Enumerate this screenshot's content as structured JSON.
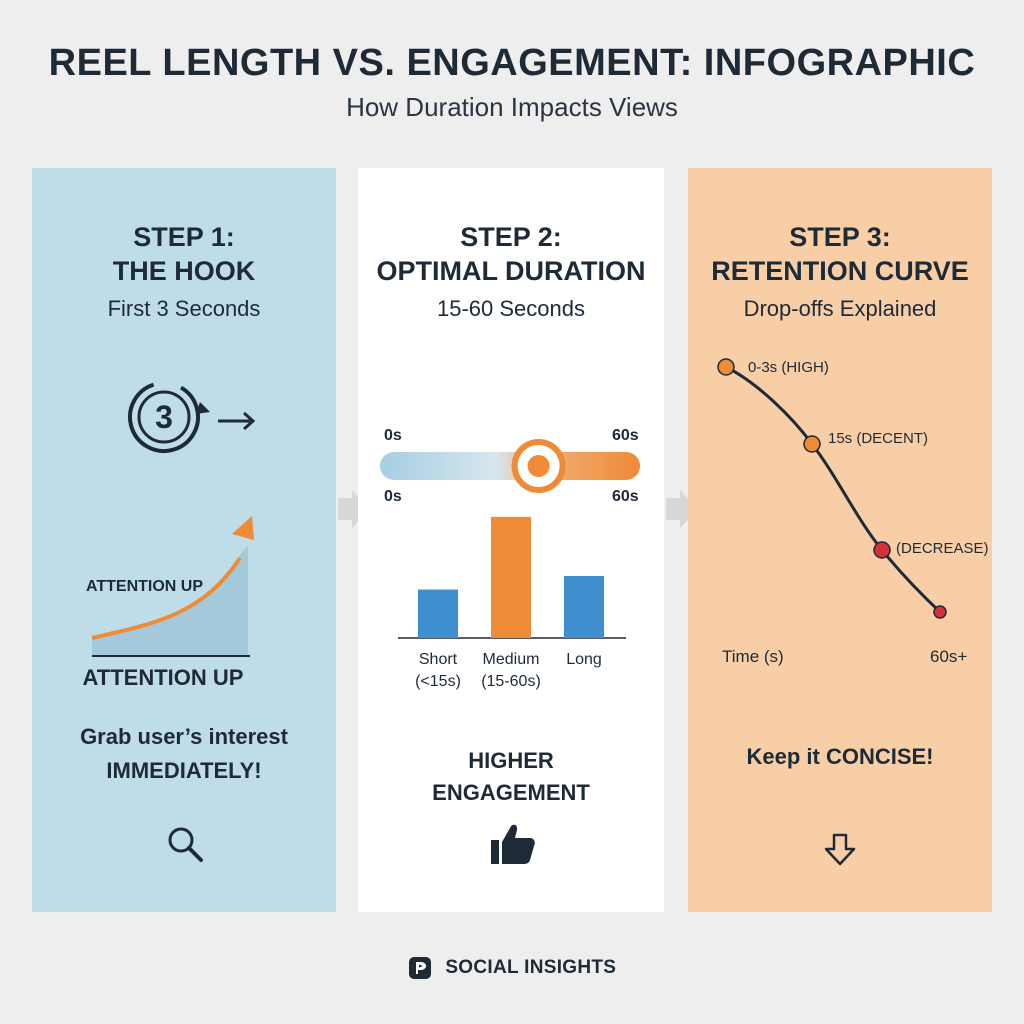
{
  "header": {
    "title": "REEL LENGTH VS. ENGAGEMENT: INFOGRAPHIC",
    "subtitle": "How Duration Impacts Views"
  },
  "step1": {
    "step": "STEP 1:",
    "name": "THE HOOK",
    "sub": "First 3 Seconds",
    "timer_number": "3",
    "chart_label": "ATTENTION UP",
    "axis_label": "ATTENTION UP",
    "text_line1": "Grab user’s interest",
    "text_line2": "IMMEDIATELY!",
    "icon": "magnifier-icon"
  },
  "step2": {
    "step": "STEP 2:",
    "name": "OPTIMAL DURATION",
    "sub": "15-60 Seconds",
    "slider_start_top": "0s",
    "slider_end_top": "60s",
    "slider_start_bottom": "0s",
    "slider_end_bottom": "60s",
    "slider_position": 0.61,
    "text_line1": "HIGHER",
    "text_line2": "ENGAGEMENT",
    "icon": "thumbs-up-icon"
  },
  "step3": {
    "step": "STEP 3:",
    "name": "RETENTION CURVE",
    "sub": "Drop-offs Explained",
    "text": "Keep it CONCISE!",
    "icon": "down-arrow-icon"
  },
  "chart_data": [
    {
      "type": "bar",
      "categories": [
        "Short\n(<15s)",
        "Medium\n(15-60s)",
        "Long"
      ],
      "category_lines": [
        [
          "Short",
          "(<15s)"
        ],
        [
          "Medium",
          "(15-60s)"
        ],
        [
          "Long"
        ]
      ],
      "values": [
        50,
        125,
        64
      ],
      "colors": [
        "#3f8ed0",
        "#ef8a36",
        "#3f8ed0"
      ],
      "ylim": [
        0,
        130
      ]
    },
    {
      "type": "line",
      "xlabel": "Time (s)",
      "x_end_label": "60s+",
      "points": [
        {
          "label": "0-3s (HIGH)",
          "color": "#ef8a36"
        },
        {
          "label": "15s (DECENT)",
          "color": "#ef8a36"
        },
        {
          "label": "(DECREASE)",
          "color": "#d6303a"
        },
        {
          "label": "",
          "color": "#d6303a"
        }
      ]
    }
  ],
  "footer": {
    "brand": "SOCIAL INSIGHTS"
  },
  "colors": {
    "blue_panel": "#bfdde9",
    "orange_panel": "#f8cea6",
    "accent_orange": "#ef8a36",
    "accent_blue": "#3f8ed0",
    "dark": "#1f2a37"
  }
}
